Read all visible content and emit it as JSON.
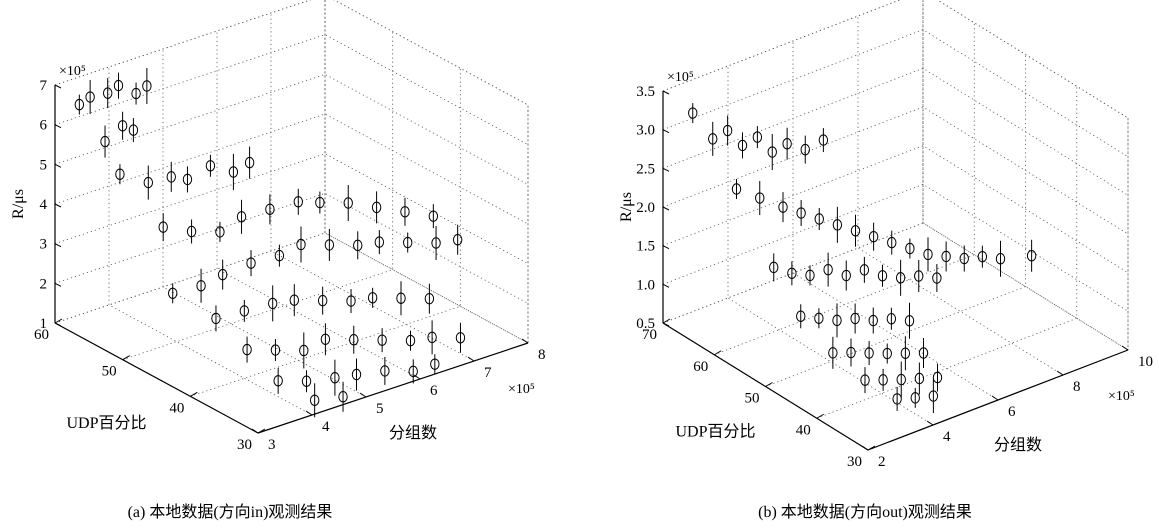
{
  "chart_data": [
    {
      "type": "scatter3d",
      "caption": "(a) 本地数据(方向in)观测结果",
      "xlabel": "分组数",
      "ylabel": "UDP百分比",
      "zlabel": "R/μs",
      "x_multiplier": "×10⁵",
      "z_multiplier": "×10⁵",
      "x_ticks": [
        "3",
        "4",
        "5",
        "6",
        "7",
        "8"
      ],
      "y_ticks": [
        "30",
        "40",
        "50",
        "60"
      ],
      "z_ticks": [
        "1",
        "2",
        "3",
        "4",
        "5",
        "6",
        "7"
      ],
      "xlim": [
        3,
        8
      ],
      "ylim": [
        30,
        60
      ],
      "zlim": [
        1,
        7
      ],
      "grid": true,
      "marker": "circle-with-errorbar",
      "points": [
        {
          "x": 3.2,
          "y": 58,
          "z": 6.6
        },
        {
          "x": 3.4,
          "y": 58,
          "z": 6.7
        },
        {
          "x": 3.6,
          "y": 57,
          "z": 6.8
        },
        {
          "x": 3.8,
          "y": 57,
          "z": 6.9
        },
        {
          "x": 4.0,
          "y": 56,
          "z": 6.7
        },
        {
          "x": 4.2,
          "y": 56,
          "z": 6.8
        },
        {
          "x": 3.3,
          "y": 55,
          "z": 5.9
        },
        {
          "x": 3.5,
          "y": 54,
          "z": 6.3
        },
        {
          "x": 3.7,
          "y": 54,
          "z": 6.1
        },
        {
          "x": 3.2,
          "y": 52,
          "z": 5.4
        },
        {
          "x": 3.6,
          "y": 51,
          "z": 5.1
        },
        {
          "x": 3.9,
          "y": 50,
          "z": 5.2
        },
        {
          "x": 4.2,
          "y": 50,
          "z": 5.0
        },
        {
          "x": 4.5,
          "y": 49,
          "z": 5.3
        },
        {
          "x": 4.8,
          "y": 48,
          "z": 5.1
        },
        {
          "x": 5.1,
          "y": 48,
          "z": 5.2
        },
        {
          "x": 3.5,
          "y": 48,
          "z": 4.3
        },
        {
          "x": 3.9,
          "y": 47,
          "z": 4.1
        },
        {
          "x": 4.3,
          "y": 46,
          "z": 4.0
        },
        {
          "x": 4.7,
          "y": 46,
          "z": 4.2
        },
        {
          "x": 5.1,
          "y": 45,
          "z": 4.3
        },
        {
          "x": 5.5,
          "y": 44,
          "z": 4.4
        },
        {
          "x": 5.9,
          "y": 44,
          "z": 4.2
        },
        {
          "x": 6.3,
          "y": 43,
          "z": 4.1
        },
        {
          "x": 6.7,
          "y": 42,
          "z": 3.9
        },
        {
          "x": 7.1,
          "y": 41,
          "z": 3.7
        },
        {
          "x": 7.5,
          "y": 40,
          "z": 3.5
        },
        {
          "x": 3.3,
          "y": 45,
          "z": 3.0
        },
        {
          "x": 3.7,
          "y": 44,
          "z": 3.1
        },
        {
          "x": 4.1,
          "y": 44,
          "z": 3.2
        },
        {
          "x": 4.5,
          "y": 43,
          "z": 3.4
        },
        {
          "x": 4.9,
          "y": 42,
          "z": 3.5
        },
        {
          "x": 5.3,
          "y": 42,
          "z": 3.6
        },
        {
          "x": 5.7,
          "y": 41,
          "z": 3.5
        },
        {
          "x": 6.1,
          "y": 40,
          "z": 3.4
        },
        {
          "x": 6.5,
          "y": 40,
          "z": 3.3
        },
        {
          "x": 6.9,
          "y": 39,
          "z": 3.2
        },
        {
          "x": 7.3,
          "y": 38,
          "z": 3.1
        },
        {
          "x": 7.7,
          "y": 38,
          "z": 3.0
        },
        {
          "x": 3.6,
          "y": 41,
          "z": 2.6
        },
        {
          "x": 4.0,
          "y": 40,
          "z": 2.7
        },
        {
          "x": 4.4,
          "y": 39,
          "z": 2.8
        },
        {
          "x": 4.8,
          "y": 39,
          "z": 2.7
        },
        {
          "x": 5.2,
          "y": 38,
          "z": 2.6
        },
        {
          "x": 5.6,
          "y": 37,
          "z": 2.5
        },
        {
          "x": 6.0,
          "y": 37,
          "z": 2.4
        },
        {
          "x": 6.4,
          "y": 36,
          "z": 2.3
        },
        {
          "x": 6.8,
          "y": 35,
          "z": 2.2
        },
        {
          "x": 3.8,
          "y": 38,
          "z": 2.0
        },
        {
          "x": 4.2,
          "y": 37,
          "z": 1.9
        },
        {
          "x": 4.6,
          "y": 36,
          "z": 1.8
        },
        {
          "x": 5.0,
          "y": 36,
          "z": 1.9
        },
        {
          "x": 5.4,
          "y": 35,
          "z": 1.8
        },
        {
          "x": 5.8,
          "y": 34,
          "z": 1.7
        },
        {
          "x": 6.2,
          "y": 33,
          "z": 1.6
        },
        {
          "x": 6.6,
          "y": 33,
          "z": 1.5
        },
        {
          "x": 7.0,
          "y": 32,
          "z": 1.4
        },
        {
          "x": 4.0,
          "y": 35,
          "z": 1.4
        },
        {
          "x": 4.4,
          "y": 34,
          "z": 1.3
        },
        {
          "x": 4.8,
          "y": 33,
          "z": 1.3
        },
        {
          "x": 5.2,
          "y": 33,
          "z": 1.2
        },
        {
          "x": 5.6,
          "y": 32,
          "z": 1.2
        },
        {
          "x": 6.0,
          "y": 31,
          "z": 1.1
        },
        {
          "x": 6.4,
          "y": 31,
          "z": 1.1
        },
        {
          "x": 4.3,
          "y": 32,
          "z": 1.05
        },
        {
          "x": 4.7,
          "y": 31,
          "z": 1.05
        }
      ]
    },
    {
      "type": "scatter3d",
      "caption": "(b) 本地数据(方向out)观测结果",
      "xlabel": "分组数",
      "ylabel": "UDP百分比",
      "zlabel": "R/μs",
      "x_multiplier": "×10⁵",
      "z_multiplier": "×10⁵",
      "x_ticks": [
        "2",
        "4",
        "6",
        "8",
        "10"
      ],
      "y_ticks": [
        "30",
        "40",
        "50",
        "60",
        "70"
      ],
      "z_ticks": [
        "0.5",
        "1.0",
        "1.5",
        "2.0",
        "2.5",
        "3.0",
        "3.5"
      ],
      "xlim": [
        2,
        10
      ],
      "ylim": [
        30,
        70
      ],
      "zlim": [
        0.5,
        3.5
      ],
      "grid": true,
      "marker": "circle-with-errorbar",
      "points": [
        {
          "x": 2.6,
          "y": 68,
          "z": 3.2
        },
        {
          "x": 2.9,
          "y": 66,
          "z": 2.9
        },
        {
          "x": 3.2,
          "y": 65,
          "z": 3.0
        },
        {
          "x": 3.5,
          "y": 64,
          "z": 2.8
        },
        {
          "x": 3.8,
          "y": 63,
          "z": 2.9
        },
        {
          "x": 4.1,
          "y": 62,
          "z": 2.7
        },
        {
          "x": 4.4,
          "y": 61,
          "z": 2.8
        },
        {
          "x": 4.8,
          "y": 60,
          "z": 2.7
        },
        {
          "x": 5.2,
          "y": 59,
          "z": 2.8
        },
        {
          "x": 3.0,
          "y": 62,
          "z": 2.4
        },
        {
          "x": 3.4,
          "y": 60,
          "z": 2.3
        },
        {
          "x": 3.8,
          "y": 58,
          "z": 2.2
        },
        {
          "x": 4.2,
          "y": 57,
          "z": 2.1
        },
        {
          "x": 4.6,
          "y": 56,
          "z": 2.0
        },
        {
          "x": 5.0,
          "y": 55,
          "z": 1.9
        },
        {
          "x": 5.4,
          "y": 54,
          "z": 1.8
        },
        {
          "x": 5.8,
          "y": 53,
          "z": 1.7
        },
        {
          "x": 6.2,
          "y": 52,
          "z": 1.6
        },
        {
          "x": 6.6,
          "y": 51,
          "z": 1.5
        },
        {
          "x": 7.0,
          "y": 50,
          "z": 1.4
        },
        {
          "x": 7.4,
          "y": 49,
          "z": 1.35
        },
        {
          "x": 7.8,
          "y": 48,
          "z": 1.3
        },
        {
          "x": 8.2,
          "y": 47,
          "z": 1.3
        },
        {
          "x": 8.6,
          "y": 46,
          "z": 1.25
        },
        {
          "x": 9.4,
          "y": 45,
          "z": 1.2
        },
        {
          "x": 3.2,
          "y": 56,
          "z": 1.6
        },
        {
          "x": 3.6,
          "y": 55,
          "z": 1.5
        },
        {
          "x": 4.0,
          "y": 54,
          "z": 1.45
        },
        {
          "x": 4.4,
          "y": 53,
          "z": 1.5
        },
        {
          "x": 4.8,
          "y": 52,
          "z": 1.4
        },
        {
          "x": 5.2,
          "y": 51,
          "z": 1.45
        },
        {
          "x": 5.6,
          "y": 50,
          "z": 1.35
        },
        {
          "x": 6.0,
          "y": 49,
          "z": 1.3
        },
        {
          "x": 6.4,
          "y": 48,
          "z": 1.3
        },
        {
          "x": 6.8,
          "y": 47,
          "z": 1.25
        },
        {
          "x": 3.4,
          "y": 52,
          "z": 1.1
        },
        {
          "x": 3.8,
          "y": 51,
          "z": 1.05
        },
        {
          "x": 4.2,
          "y": 50,
          "z": 1.0
        },
        {
          "x": 4.6,
          "y": 49,
          "z": 1.0
        },
        {
          "x": 5.0,
          "y": 48,
          "z": 0.95
        },
        {
          "x": 5.4,
          "y": 47,
          "z": 0.95
        },
        {
          "x": 5.8,
          "y": 46,
          "z": 0.9
        },
        {
          "x": 3.6,
          "y": 47,
          "z": 0.8
        },
        {
          "x": 4.0,
          "y": 46,
          "z": 0.78
        },
        {
          "x": 4.4,
          "y": 45,
          "z": 0.75
        },
        {
          "x": 4.8,
          "y": 44,
          "z": 0.72
        },
        {
          "x": 5.2,
          "y": 43,
          "z": 0.7
        },
        {
          "x": 5.6,
          "y": 42,
          "z": 0.68
        },
        {
          "x": 3.8,
          "y": 42,
          "z": 0.62
        },
        {
          "x": 4.2,
          "y": 41,
          "z": 0.6
        },
        {
          "x": 4.6,
          "y": 40,
          "z": 0.58
        },
        {
          "x": 5.0,
          "y": 39,
          "z": 0.57
        },
        {
          "x": 5.4,
          "y": 38,
          "z": 0.56
        },
        {
          "x": 4.0,
          "y": 37,
          "z": 0.55
        },
        {
          "x": 4.4,
          "y": 36,
          "z": 0.54
        },
        {
          "x": 4.8,
          "y": 35,
          "z": 0.54
        }
      ]
    }
  ]
}
